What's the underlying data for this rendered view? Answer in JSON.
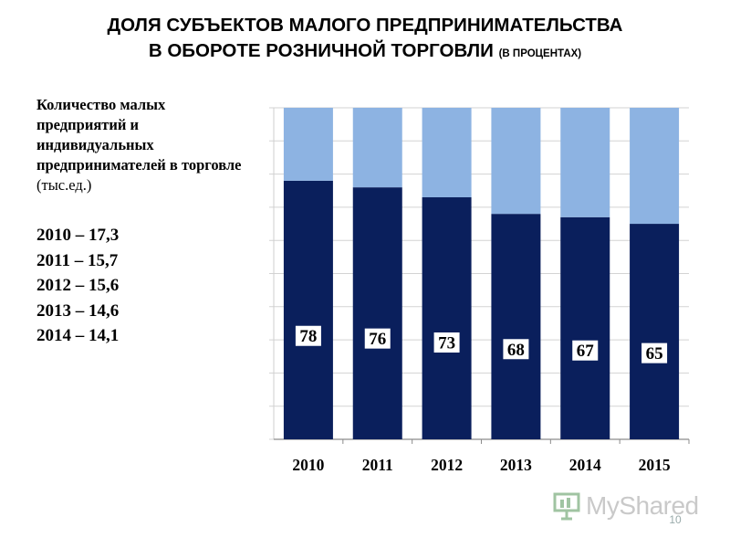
{
  "title": {
    "line1": "ДОЛЯ СУБЪЕКТОВ МАЛОГО ПРЕДПРИНИМАТЕЛЬСТВА",
    "line2": "В ОБОРОТЕ РОЗНИЧНОЙ ТОРГОВЛИ",
    "suffix": "(В ПРОЦЕНТАХ)"
  },
  "info": {
    "bold": "Количество малых предприятий и индивидуальных предпринимателей в торговле",
    "unit": "(тыс.ед.)",
    "stats": [
      "2010 – 17,3",
      "2011 – 15,7",
      "2012 – 15,6",
      "2013 – 14,6",
      "2014 – 14,1"
    ]
  },
  "chart_data": {
    "type": "bar",
    "stacked": true,
    "categories": [
      "2010",
      "2011",
      "2012",
      "2013",
      "2014",
      "2015"
    ],
    "series": [
      {
        "values": [
          78,
          76,
          73,
          68,
          67,
          65
        ],
        "color": "#0a1f5c",
        "data_labels": true
      },
      {
        "values": [
          22,
          24,
          27,
          32,
          33,
          35
        ],
        "color": "#8db3e2",
        "data_labels": false
      }
    ],
    "ylim": [
      0,
      100
    ],
    "grid": true
  },
  "watermark": {
    "text": "MyShared"
  },
  "slide_number": "10"
}
